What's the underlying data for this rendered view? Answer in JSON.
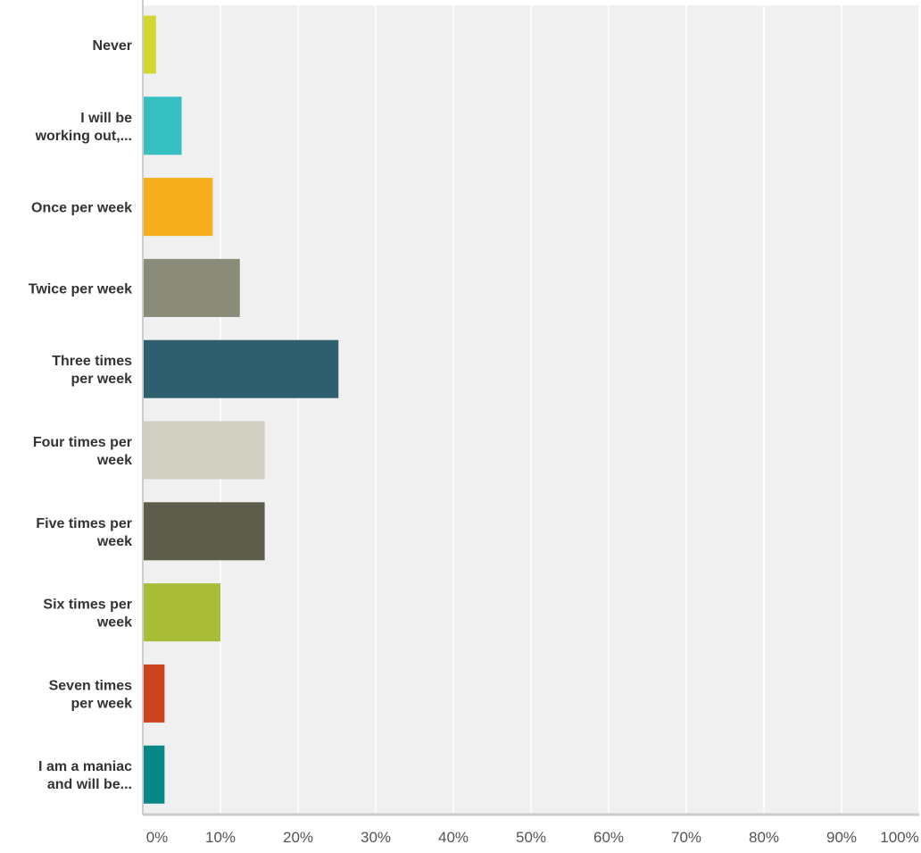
{
  "chart_data": {
    "type": "bar",
    "orientation": "horizontal",
    "categories": [
      "Never",
      "I will be working out,...",
      "Once per week",
      "Twice per week",
      "Three times per week",
      "Four times per week",
      "Five times per week",
      "Six times per week",
      "Seven times per week",
      "I am a maniac and will be..."
    ],
    "category_lines": [
      [
        "Never"
      ],
      [
        "I will be",
        "working out,..."
      ],
      [
        "Once per week"
      ],
      [
        "Twice per week"
      ],
      [
        "Three times",
        "per week"
      ],
      [
        "Four times per",
        "week"
      ],
      [
        "Five times per",
        "week"
      ],
      [
        "Six times per",
        "week"
      ],
      [
        "Seven times",
        "per week"
      ],
      [
        "I am a maniac",
        "and will be..."
      ]
    ],
    "values": [
      1.7,
      5.0,
      9.0,
      12.5,
      25.2,
      15.7,
      15.7,
      10.0,
      2.8,
      2.8
    ],
    "colors": [
      "#d2d82d",
      "#35bfc0",
      "#f7ae1d",
      "#8b8b7a",
      "#2e5f6e",
      "#d0cfc2",
      "#5e5c4b",
      "#a9bd38",
      "#cc441f",
      "#088787"
    ],
    "xlim": [
      0,
      100
    ],
    "x_ticks": [
      0,
      10,
      20,
      30,
      40,
      50,
      60,
      70,
      80,
      90,
      100
    ],
    "x_tick_labels": [
      "0%",
      "10%",
      "20%",
      "30%",
      "40%",
      "50%",
      "60%",
      "70%",
      "80%",
      "90%",
      "100%"
    ],
    "title": "",
    "xlabel": "",
    "ylabel": "",
    "grid": true,
    "legend": false,
    "plot_background": "#f0f0f0",
    "grid_color": "#ffffff",
    "axis_color": "#cccccc"
  }
}
